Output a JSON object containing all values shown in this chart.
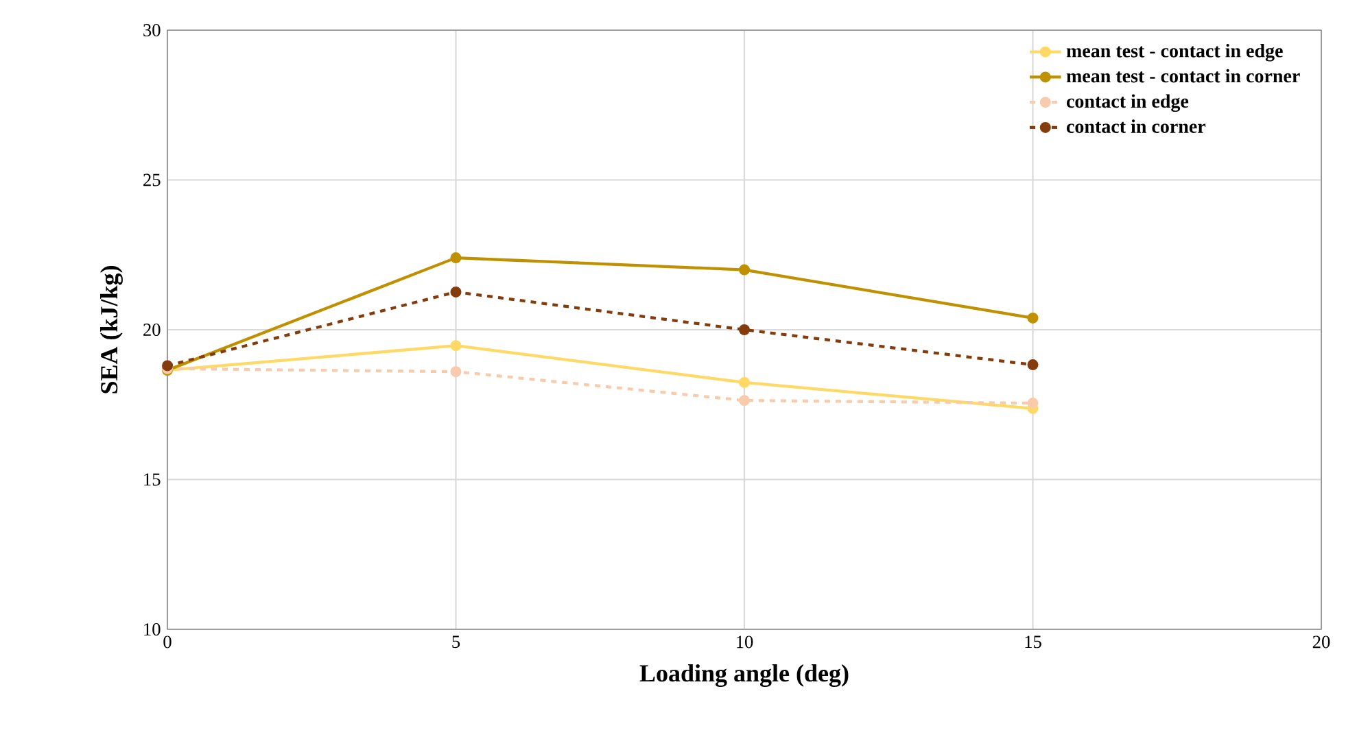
{
  "chart_data": {
    "type": "line",
    "xlabel": "Loading angle (deg)",
    "ylabel": "SEA (kJ/kg)",
    "x": [
      0,
      5,
      10,
      15
    ],
    "xlim": [
      0,
      20
    ],
    "xticks": [
      0,
      5,
      10,
      15,
      20
    ],
    "ylim": [
      10,
      30
    ],
    "yticks": [
      10,
      15,
      20,
      25,
      30
    ],
    "grid": true,
    "legend": "top right",
    "marker": "circle",
    "series": [
      {
        "name": "mean test - contact in edge",
        "color": "#ffd966",
        "line_style": "solid",
        "values": [
          18.65,
          19.47,
          18.24,
          17.37
        ]
      },
      {
        "name": "mean test - contact in corner",
        "color": "#bf9000",
        "line_style": "solid",
        "values": [
          18.65,
          22.4,
          22.0,
          20.39
        ]
      },
      {
        "name": "contact in edge",
        "color": "#f8cbad",
        "line_style": "dashed",
        "values": [
          18.7,
          18.6,
          17.64,
          17.55
        ]
      },
      {
        "name": "contact in corner",
        "color": "#843c0c",
        "line_style": "dashed",
        "values": [
          18.8,
          21.26,
          20.0,
          18.83
        ]
      }
    ]
  }
}
